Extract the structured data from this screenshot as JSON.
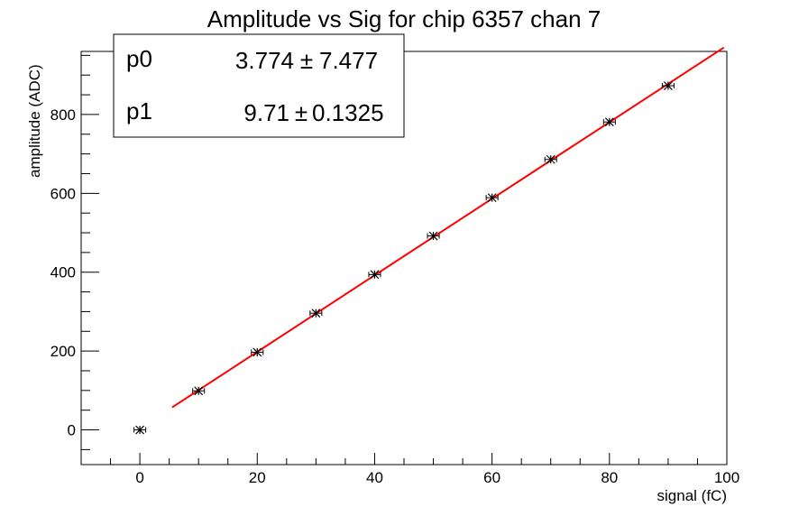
{
  "chart_data": {
    "type": "scatter",
    "title": "Amplitude vs Sig for chip 6357 chan 7",
    "xlabel": "signal (fC)",
    "ylabel": "amplitude (ADC)",
    "xlim": [
      -10,
      100
    ],
    "ylim": [
      -88,
      960
    ],
    "xticks": [
      0,
      20,
      40,
      60,
      80,
      100
    ],
    "yticks": [
      0,
      200,
      400,
      600,
      800
    ],
    "grid": false,
    "series": [
      {
        "marker": "star",
        "color": "#000000",
        "x": [
          0,
          10,
          20,
          30,
          40,
          50,
          60,
          70,
          80,
          90
        ],
        "y": [
          0,
          99,
          197,
          296,
          394,
          492,
          589,
          686,
          781,
          873
        ],
        "xerr": 1.0
      }
    ],
    "fit": {
      "type": "linear",
      "color": "#ff0000",
      "xrange": [
        5.5,
        99.5
      ],
      "params": [
        {
          "name": "p0",
          "value": "3.774",
          "pm": "±",
          "error": "7.477",
          "num": 3.774
        },
        {
          "name": "p1",
          "value": "9.71",
          "pm": "±",
          "error": "0.1325",
          "num": 9.71
        }
      ]
    }
  }
}
